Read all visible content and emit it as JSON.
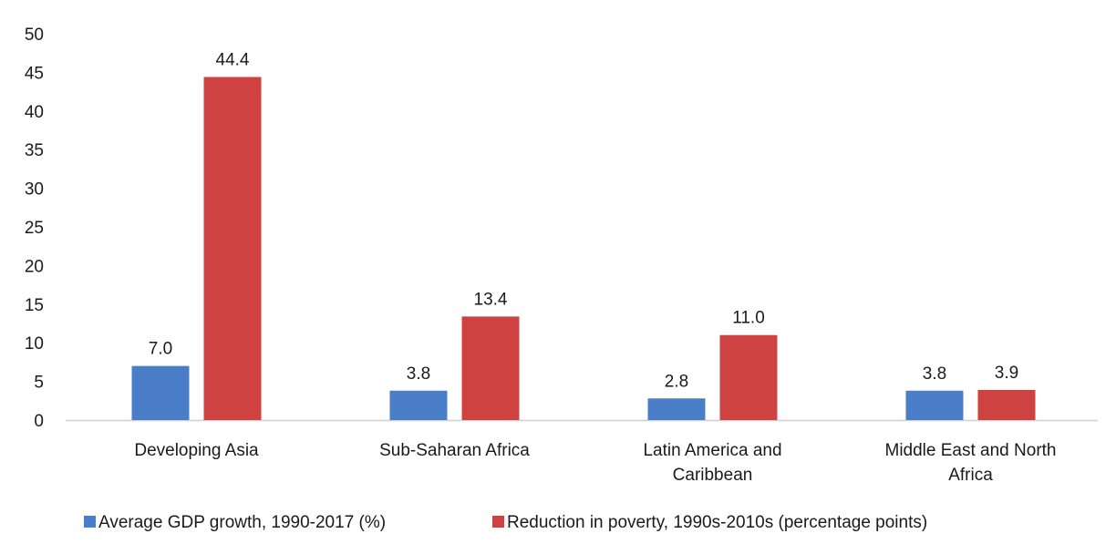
{
  "chart_data": {
    "type": "bar",
    "categories": [
      [
        "Developing Asia"
      ],
      [
        "Sub-Saharan Africa"
      ],
      [
        "Latin America and",
        "Caribbean"
      ],
      [
        "Middle East and North",
        "Africa"
      ]
    ],
    "series": [
      {
        "name": "Average GDP growth, 1990-2017 (%)",
        "values": [
          7.0,
          3.8,
          2.8,
          3.8
        ],
        "labels": [
          "7.0",
          "3.8",
          "2.8",
          "3.8"
        ],
        "color": "#4a7ec8"
      },
      {
        "name": "Reduction in poverty, 1990s-2010s (percentage points)",
        "values": [
          44.4,
          13.4,
          11.0,
          3.9
        ],
        "labels": [
          "44.4",
          "13.4",
          "11.0",
          "3.9"
        ],
        "color": "#cf4242"
      }
    ],
    "yticks": [
      "0",
      "5",
      "10",
      "15",
      "20",
      "25",
      "30",
      "35",
      "40",
      "45",
      "50"
    ],
    "ylim": [
      0,
      50
    ],
    "grid": false,
    "legend_position": "bottom"
  }
}
